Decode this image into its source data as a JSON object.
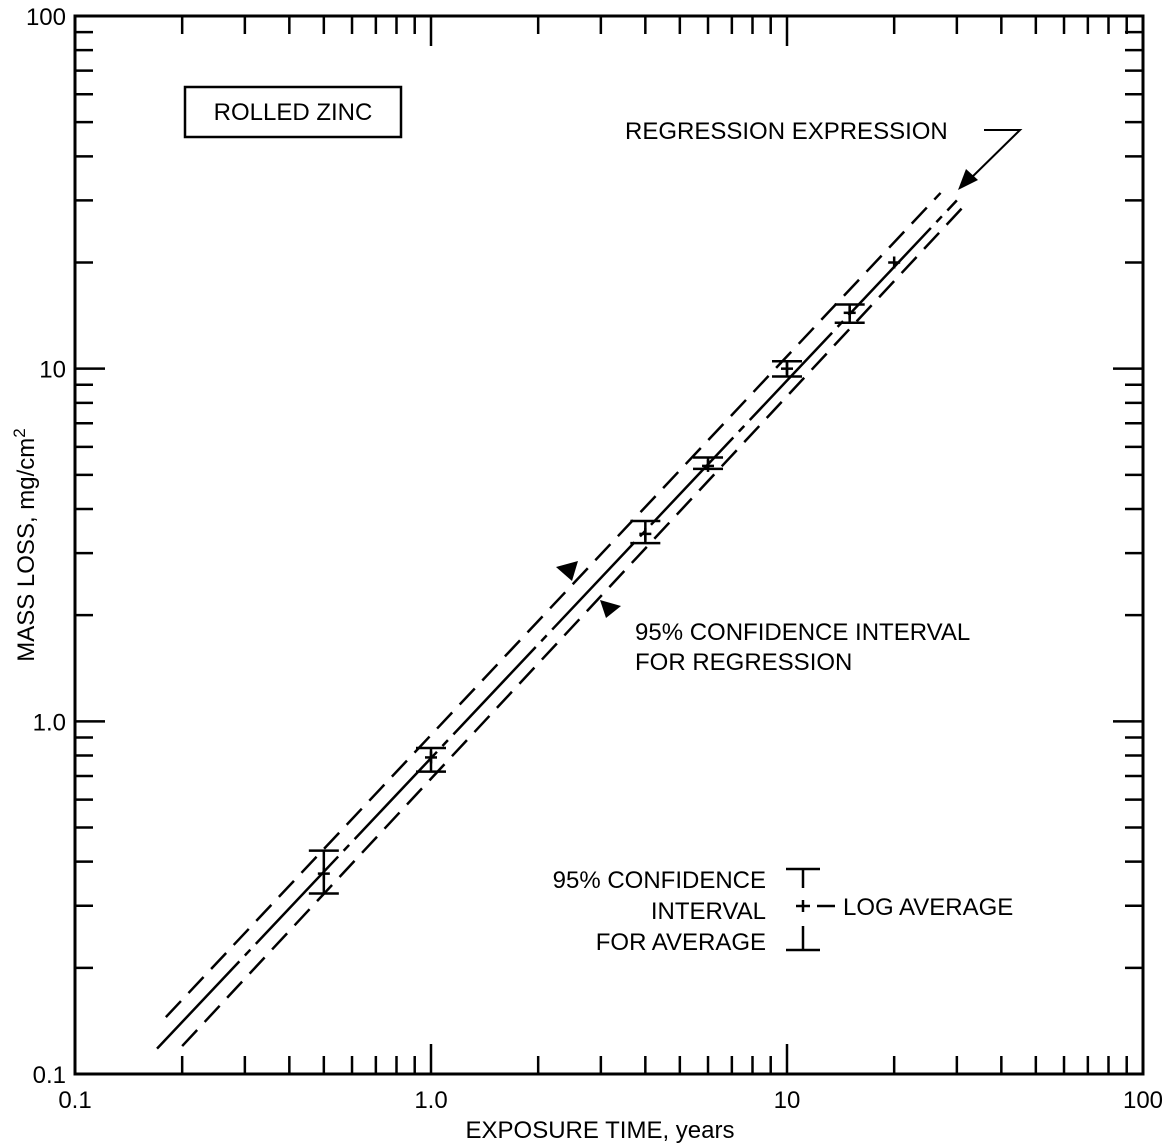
{
  "chart_data": {
    "type": "line",
    "title": "",
    "xlabel": "EXPOSURE TIME, years",
    "ylabel": "MASS LOSS, mg/cm",
    "ylabel_superscript": "2",
    "x_scale": "log",
    "y_scale": "log",
    "xlim": [
      0.1,
      100
    ],
    "ylim": [
      0.1,
      100
    ],
    "x_tick_labels": [
      {
        "value": 0.1,
        "label": "0.1"
      },
      {
        "value": 1,
        "label": "1.0"
      },
      {
        "value": 10,
        "label": "10"
      },
      {
        "value": 100,
        "label": "100"
      }
    ],
    "y_tick_labels": [
      {
        "value": 0.1,
        "label": "0.1"
      },
      {
        "value": 1,
        "label": "1.0"
      },
      {
        "value": 10,
        "label": "10"
      },
      {
        "value": 100,
        "label": "100"
      }
    ],
    "grid": false,
    "material_box": "ROLLED ZINC",
    "annotations": {
      "regression": "REGRESSION EXPRESSION",
      "ci_regression_line1": "95% CONFIDENCE INTERVAL",
      "ci_regression_line2": "FOR REGRESSION",
      "legend_line1": "95% CONFIDENCE",
      "legend_line2": "INTERVAL",
      "legend_line3": "FOR AVERAGE",
      "legend_log_average": "LOG AVERAGE"
    },
    "regression_line": {
      "x": [
        0.17,
        30
      ],
      "y": [
        0.118,
        30
      ]
    },
    "ci_upper": {
      "x": [
        0.18,
        27
      ],
      "y": [
        0.145,
        31.5
      ]
    },
    "ci_lower": {
      "x": [
        0.2,
        31
      ],
      "y": [
        0.12,
        28.5
      ]
    },
    "log_averages": [
      {
        "x": 0.5,
        "y": 0.37,
        "ci_low": 0.325,
        "ci_high": 0.43
      },
      {
        "x": 1,
        "y": 0.79,
        "ci_low": 0.72,
        "ci_high": 0.84
      },
      {
        "x": 4,
        "y": 3.4,
        "ci_low": 3.2,
        "ci_high": 3.7
      },
      {
        "x": 6,
        "y": 5.3,
        "ci_low": 5.2,
        "ci_high": 5.6
      },
      {
        "x": 10,
        "y": 10,
        "ci_low": 9.5,
        "ci_high": 10.5
      },
      {
        "x": 15,
        "y": 14.4,
        "ci_low": 13.5,
        "ci_high": 15.2
      },
      {
        "x": 20,
        "y": 20,
        "ci_low": null,
        "ci_high": null
      }
    ]
  }
}
